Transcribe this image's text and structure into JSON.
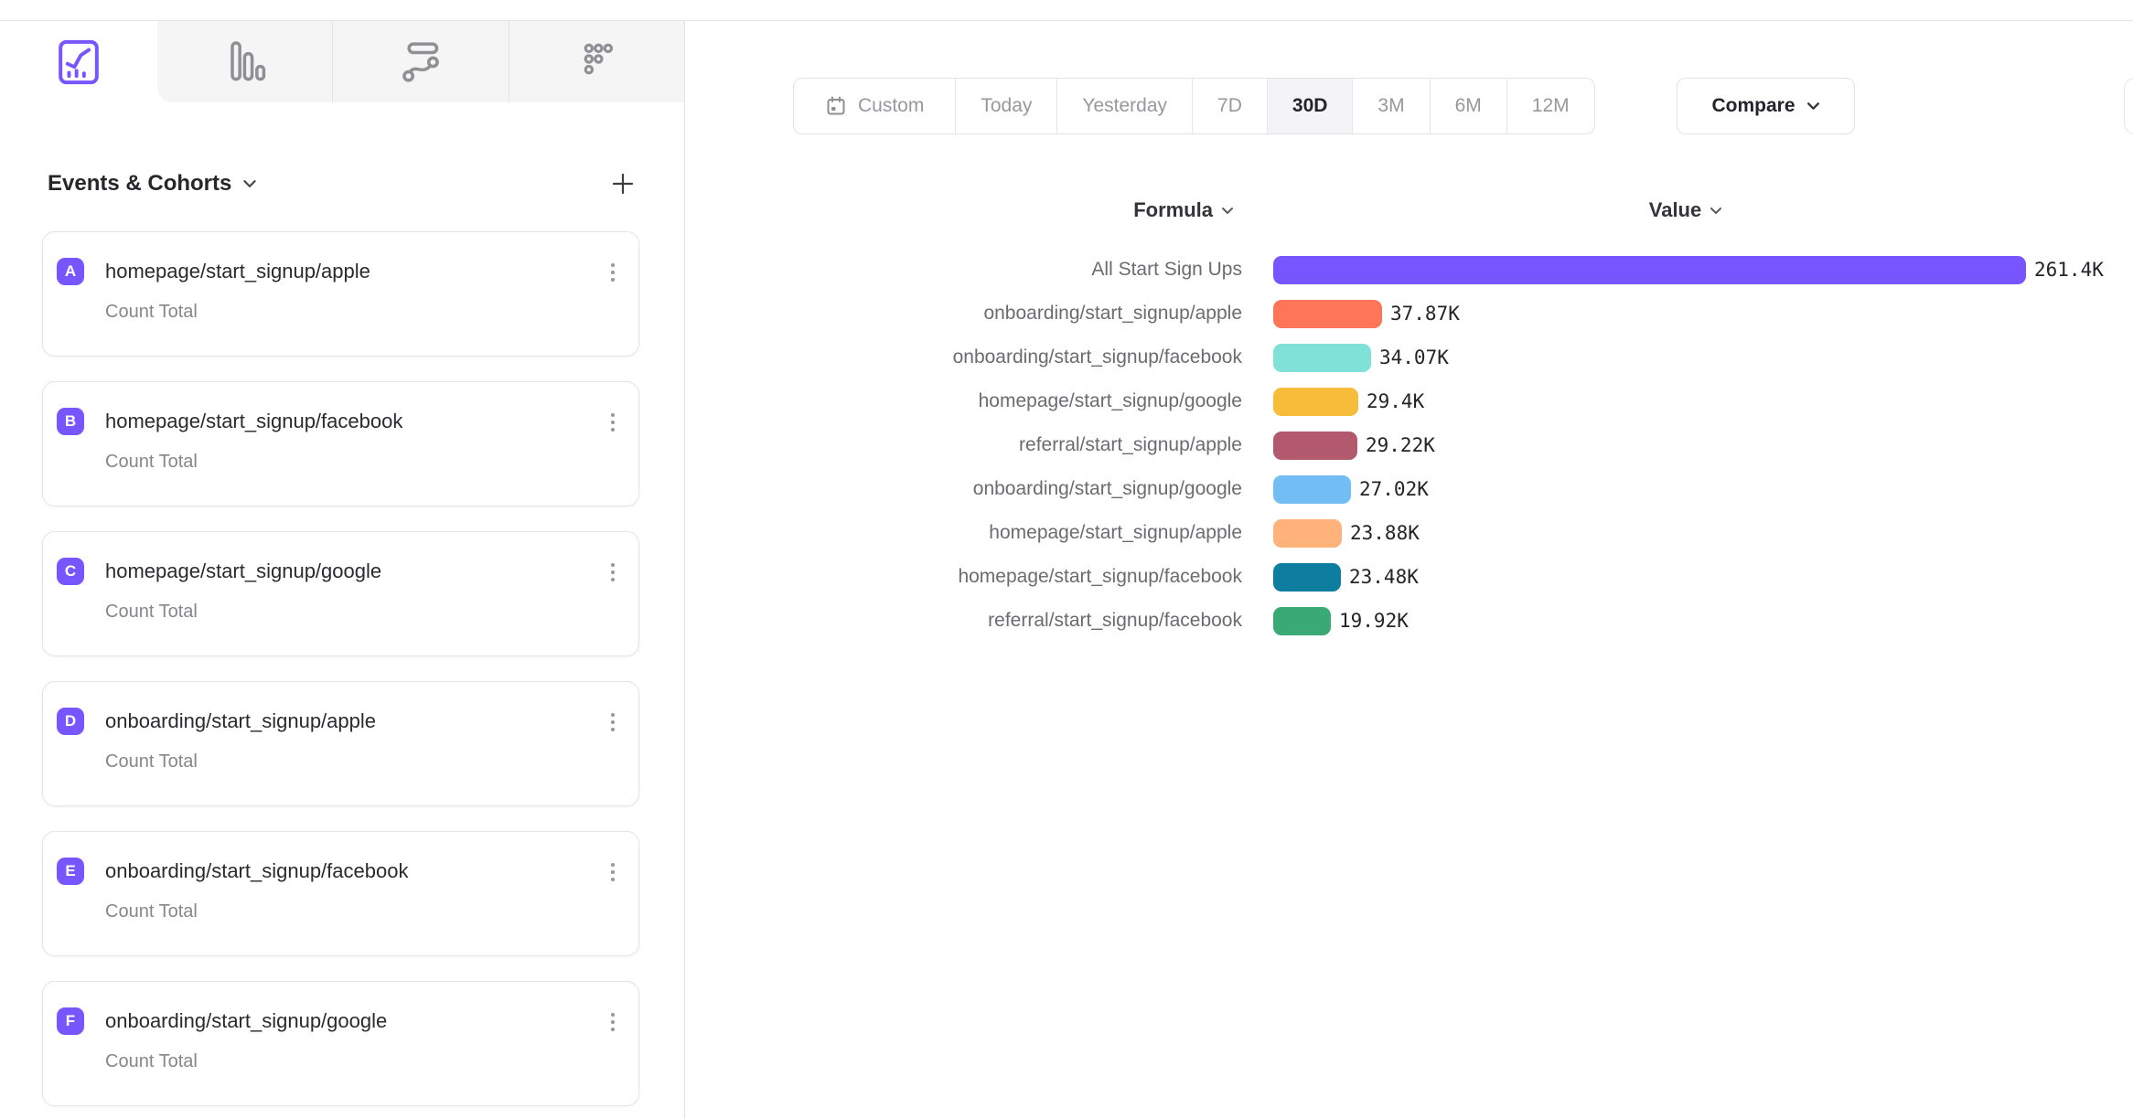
{
  "accent_color": "#7856FF",
  "tabbar": {
    "tabs": [
      {
        "icon": "insights-chart-icon",
        "active": true
      },
      {
        "icon": "bar-chart-icon",
        "active": false
      },
      {
        "icon": "flow-icon",
        "active": false
      },
      {
        "icon": "metrics-icon",
        "active": false
      }
    ]
  },
  "sidebar": {
    "title": "Events & Cohorts",
    "add_button": "+",
    "events": [
      {
        "letter": "A",
        "name": "homepage/start_signup/apple",
        "metric": "Count Total"
      },
      {
        "letter": "B",
        "name": "homepage/start_signup/facebook",
        "metric": "Count Total"
      },
      {
        "letter": "C",
        "name": "homepage/start_signup/google",
        "metric": "Count Total"
      },
      {
        "letter": "D",
        "name": "onboarding/start_signup/apple",
        "metric": "Count Total"
      },
      {
        "letter": "E",
        "name": "onboarding/start_signup/facebook",
        "metric": "Count Total"
      },
      {
        "letter": "F",
        "name": "onboarding/start_signup/google",
        "metric": "Count Total"
      }
    ]
  },
  "date_range": {
    "options": [
      "Custom",
      "Today",
      "Yesterday",
      "7D",
      "30D",
      "3M",
      "6M",
      "12M"
    ],
    "selected": "30D",
    "compare_label": "Compare"
  },
  "chart_data": {
    "type": "bar",
    "orientation": "horizontal",
    "column_headers": {
      "formula": "Formula",
      "value": "Value"
    },
    "max_value": 261400,
    "rows": [
      {
        "label": "All Start Sign Ups",
        "value": 261400,
        "display": "261.4K",
        "color": "#7856FF"
      },
      {
        "label": "onboarding/start_signup/apple",
        "value": 37870,
        "display": "37.87K",
        "color": "#FF7557"
      },
      {
        "label": "onboarding/start_signup/facebook",
        "value": 34070,
        "display": "34.07K",
        "color": "#80E1D9"
      },
      {
        "label": "homepage/start_signup/google",
        "value": 29400,
        "display": "29.4K",
        "color": "#F8BC3B"
      },
      {
        "label": "referral/start_signup/apple",
        "value": 29220,
        "display": "29.22K",
        "color": "#B2596E"
      },
      {
        "label": "onboarding/start_signup/google",
        "value": 27020,
        "display": "27.02K",
        "color": "#72BEF4"
      },
      {
        "label": "homepage/start_signup/apple",
        "value": 23880,
        "display": "23.88K",
        "color": "#FFB27A"
      },
      {
        "label": "homepage/start_signup/facebook",
        "value": 23480,
        "display": "23.48K",
        "color": "#0D7EA0"
      },
      {
        "label": "referral/start_signup/facebook",
        "value": 19920,
        "display": "19.92K",
        "color": "#3BA974"
      }
    ]
  }
}
